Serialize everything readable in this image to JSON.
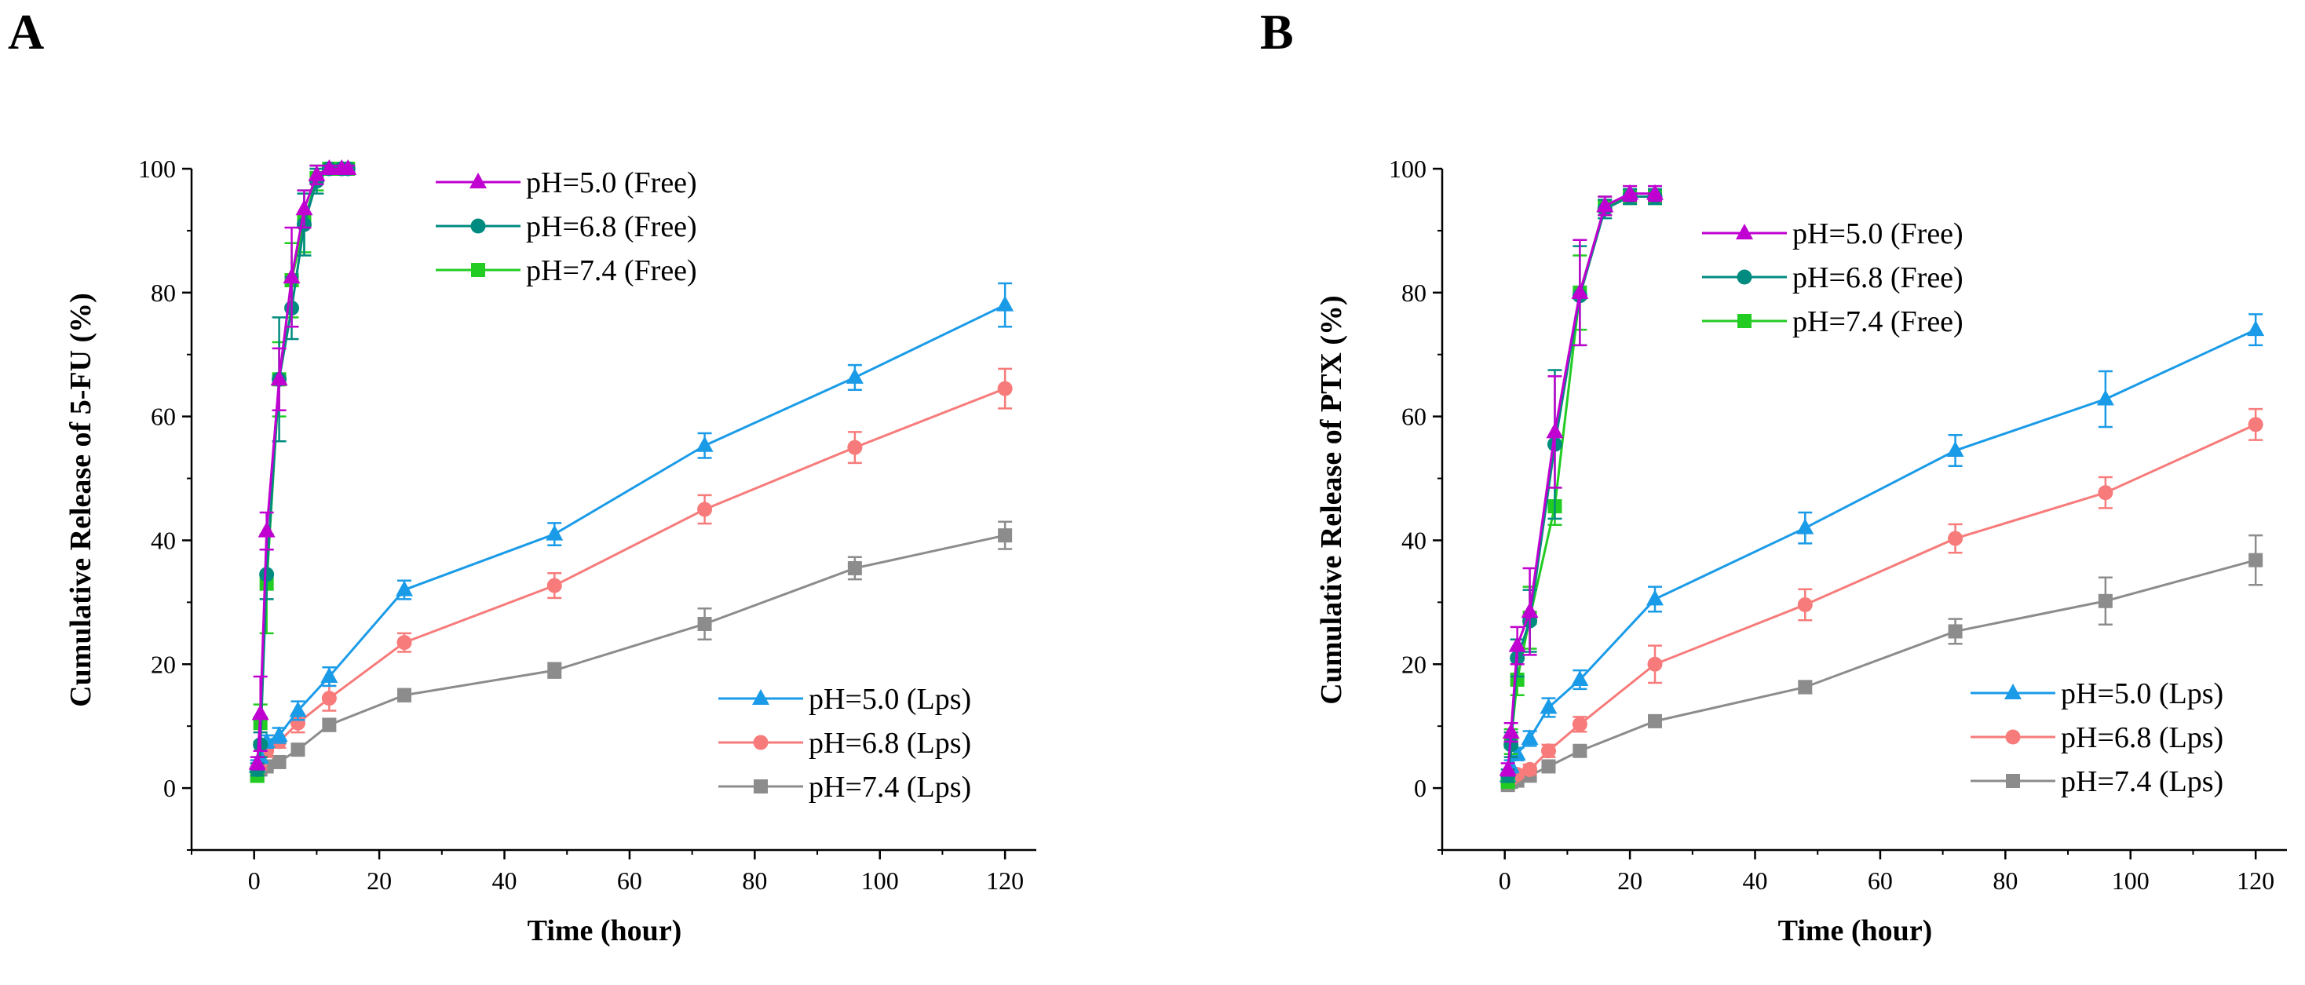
{
  "chart_data": [
    {
      "panel": "A",
      "type": "line",
      "title": "",
      "xlabel": "Time (hour)",
      "ylabel": "Cumulative  Release of 5-FU (%)",
      "xlim": [
        -10,
        125
      ],
      "ylim": [
        -10,
        100
      ],
      "xticks": [
        0,
        20,
        40,
        60,
        80,
        100,
        120
      ],
      "yticks": [
        0,
        20,
        40,
        60,
        80,
        100
      ],
      "xtick_labels": [
        "0",
        "20",
        "40",
        "60",
        "80",
        "100",
        "120"
      ],
      "ytick_labels": [
        "0",
        "20",
        "40",
        "60",
        "80",
        "100"
      ],
      "legends": [
        {
          "position": "top-center",
          "entries": [
            0,
            1,
            2
          ]
        },
        {
          "position": "bottom-right",
          "entries": [
            3,
            4,
            5
          ]
        }
      ],
      "series": [
        {
          "name": "pH=5.0 (Free)",
          "color": "#c000d0",
          "marker": "triangle",
          "x": [
            0.5,
            1,
            2,
            4,
            6,
            8,
            10,
            12,
            14,
            15
          ],
          "y": [
            4,
            12,
            41.5,
            66,
            82.5,
            93.5,
            99,
            100,
            100,
            100
          ],
          "err": [
            1,
            6,
            3,
            5,
            8,
            3,
            1.5,
            0.5,
            0.5,
            0.5
          ]
        },
        {
          "name": "pH=6.8 (Free)",
          "color": "#008b80",
          "marker": "circle",
          "x": [
            0.5,
            1,
            2,
            4,
            6,
            8,
            10,
            12,
            14,
            15
          ],
          "y": [
            3,
            7,
            34.5,
            66,
            77.5,
            91,
            98,
            100,
            100,
            100
          ],
          "err": [
            1,
            2,
            4,
            10,
            5,
            5,
            2,
            0.5,
            0.5,
            0.5
          ]
        },
        {
          "name": "pH=7.4 (Free)",
          "color": "#22cc22",
          "marker": "square",
          "x": [
            0.5,
            1,
            2,
            4,
            6,
            8,
            10,
            12,
            14,
            15
          ],
          "y": [
            2,
            10.5,
            33,
            66,
            82,
            91.5,
            98.5,
            100,
            100,
            100
          ],
          "err": [
            1,
            3,
            8,
            6,
            6,
            5,
            2,
            0.5,
            0.5,
            0.5
          ]
        },
        {
          "name": "pH=5.0 (Lps)",
          "color": "#1a9be8",
          "marker": "triangle",
          "x": [
            0.5,
            1,
            2,
            4,
            7,
            12,
            24,
            48,
            72,
            96,
            120
          ],
          "y": [
            3.5,
            5,
            7.5,
            8.5,
            12.5,
            18,
            32,
            41,
            55.3,
            66.3,
            78
          ],
          "err": [
            1,
            1,
            1,
            1.2,
            1.5,
            1.5,
            1.5,
            1.8,
            2,
            2,
            3.5
          ]
        },
        {
          "name": "pH=6.8 (Lps)",
          "color": "#f77b7b",
          "marker": "circle",
          "x": [
            0.5,
            1,
            2,
            4,
            7,
            12,
            24,
            48,
            72,
            96,
            120
          ],
          "y": [
            2.5,
            4,
            6,
            7.5,
            10.5,
            14.5,
            23.5,
            32.7,
            45,
            55,
            64.5
          ],
          "err": [
            1,
            1,
            1,
            1,
            1.5,
            2,
            1.5,
            2,
            2.3,
            2.5,
            3.2
          ]
        },
        {
          "name": "pH=7.4 (Lps)",
          "color": "#8c8c8c",
          "marker": "square",
          "x": [
            0.5,
            1,
            2,
            4,
            7,
            12,
            24,
            48,
            72,
            96,
            120
          ],
          "y": [
            2,
            3,
            3.5,
            4.2,
            6.2,
            10.2,
            15,
            19,
            26.5,
            35.5,
            40.8
          ],
          "err": [
            0.5,
            0.5,
            0.5,
            0.8,
            0.8,
            1,
            1,
            1.2,
            2.5,
            1.8,
            2.2
          ]
        }
      ]
    },
    {
      "panel": "B",
      "type": "line",
      "title": "",
      "xlabel": "Time (hour)",
      "ylabel": "Cumulative  Release of  PTX (%)",
      "xlim": [
        -10,
        125
      ],
      "ylim": [
        -10,
        100
      ],
      "xticks": [
        0,
        20,
        40,
        60,
        80,
        100,
        120
      ],
      "yticks": [
        0,
        20,
        40,
        60,
        80,
        100
      ],
      "xtick_labels": [
        "0",
        "20",
        "40",
        "60",
        "80",
        "100",
        "120"
      ],
      "ytick_labels": [
        "0",
        "20",
        "40",
        "60",
        "80",
        "100"
      ],
      "legends": [
        {
          "position": "top-center",
          "entries": [
            0,
            1,
            2
          ]
        },
        {
          "position": "bottom-right",
          "entries": [
            3,
            4,
            5
          ]
        }
      ],
      "series": [
        {
          "name": "pH=5.0 (Free)",
          "color": "#c000d0",
          "marker": "triangle",
          "x": [
            0.5,
            1,
            2,
            4,
            8,
            12,
            16,
            20,
            24
          ],
          "y": [
            3,
            9,
            23,
            28.5,
            57.5,
            80,
            94,
            96,
            96
          ],
          "err": [
            1,
            1.5,
            3,
            7,
            9,
            8.5,
            1.5,
            1.2,
            1.2
          ]
        },
        {
          "name": "pH=6.8 (Free)",
          "color": "#008b80",
          "marker": "circle",
          "x": [
            0.5,
            1,
            2,
            4,
            8,
            12,
            16,
            20,
            24
          ],
          "y": [
            2,
            7,
            21,
            27,
            55.5,
            79.5,
            93.5,
            95.5,
            95.5
          ],
          "err": [
            1,
            2,
            3,
            5,
            12,
            8,
            1.5,
            1.2,
            1.2
          ]
        },
        {
          "name": "pH=7.4 (Free)",
          "color": "#22cc22",
          "marker": "square",
          "x": [
            0.5,
            1,
            2,
            4,
            8,
            12,
            16,
            20,
            24
          ],
          "y": [
            1,
            7.5,
            17.5,
            27.5,
            45.5,
            80,
            94,
            95.5,
            95.5
          ],
          "err": [
            0.5,
            2,
            2.5,
            5,
            3,
            6,
            1.5,
            1.2,
            1.2
          ]
        },
        {
          "name": "pH=5.0 (Lps)",
          "color": "#1a9be8",
          "marker": "triangle",
          "x": [
            0.5,
            1,
            2,
            4,
            7,
            12,
            24,
            48,
            72,
            96,
            120
          ],
          "y": [
            2,
            3.5,
            5.5,
            8,
            13,
            17.5,
            30.5,
            42,
            54.5,
            62.8,
            74
          ],
          "err": [
            0.5,
            1,
            1,
            1.2,
            1.5,
            1.5,
            2,
            2.5,
            2.5,
            4.5,
            2.5
          ]
        },
        {
          "name": "pH=6.8 (Lps)",
          "color": "#f77b7b",
          "marker": "circle",
          "x": [
            0.5,
            1,
            2,
            4,
            7,
            12,
            24,
            48,
            72,
            96,
            120
          ],
          "y": [
            1,
            1.5,
            2.2,
            3,
            6,
            10.3,
            20,
            29.6,
            40.3,
            47.7,
            58.7
          ],
          "err": [
            0.5,
            0.5,
            0.5,
            0.8,
            1,
            1.2,
            3,
            2.5,
            2.3,
            2.5,
            2.5
          ]
        },
        {
          "name": "pH=7.4 (Lps)",
          "color": "#8c8c8c",
          "marker": "square",
          "x": [
            0.5,
            1,
            2,
            4,
            7,
            12,
            24,
            48,
            72,
            96,
            120
          ],
          "y": [
            0.5,
            1,
            1.2,
            2,
            3.5,
            6,
            10.8,
            16.3,
            25.3,
            30.2,
            36.8
          ],
          "err": [
            0.3,
            0.3,
            0.3,
            0.5,
            0.8,
            0.8,
            0.8,
            1,
            2,
            3.8,
            4
          ]
        }
      ]
    }
  ]
}
